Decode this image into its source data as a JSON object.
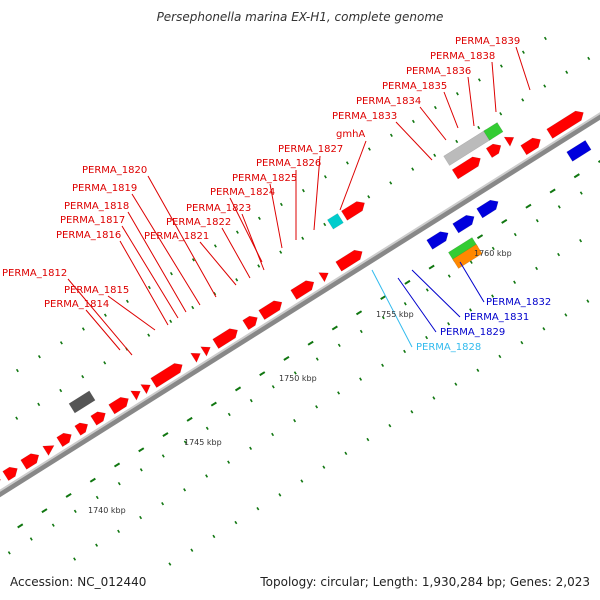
{
  "title": "Persephonella marina EX-H1, complete genome",
  "footer": {
    "accession": "Accession: NC_012440",
    "summary": "Topology: circular; Length: 1,930,284 bp; Genes: 2,023"
  },
  "colors": {
    "cds": "#ff0000",
    "cds_reverse": "#0000dd",
    "trna": "#00cccc",
    "rrna_green": "#33cc33",
    "rrna_orange": "#ff8800",
    "pseudo": "#555555",
    "label_red": "#dd0000",
    "label_blue": "#0000cc",
    "label_cyan": "#33bbee",
    "backbone": "#999999",
    "tick": "#117711"
  },
  "ticks": {
    "labels": [
      "1740 kbp",
      "1745 kbp",
      "1750 kbp",
      "1755 kbp",
      "1760 kbp"
    ]
  },
  "gene_labels_red": [
    "PERMA_1812",
    "PERMA_1814",
    "PERMA_1815",
    "PERMA_1816",
    "PERMA_1817",
    "PERMA_1818",
    "PERMA_1819",
    "PERMA_1820",
    "PERMA_1821",
    "PERMA_1822",
    "PERMA_1823",
    "PERMA_1824",
    "PERMA_1825",
    "PERMA_1826",
    "PERMA_1827",
    "gmhA",
    "PERMA_1833",
    "PERMA_1834",
    "PERMA_1835",
    "PERMA_1836",
    "PERMA_1838",
    "PERMA_1839"
  ],
  "gene_labels_blue": [
    "PERMA_1829",
    "PERMA_1831",
    "PERMA_1832"
  ],
  "gene_labels_cyan": [
    "PERMA_1828"
  ]
}
